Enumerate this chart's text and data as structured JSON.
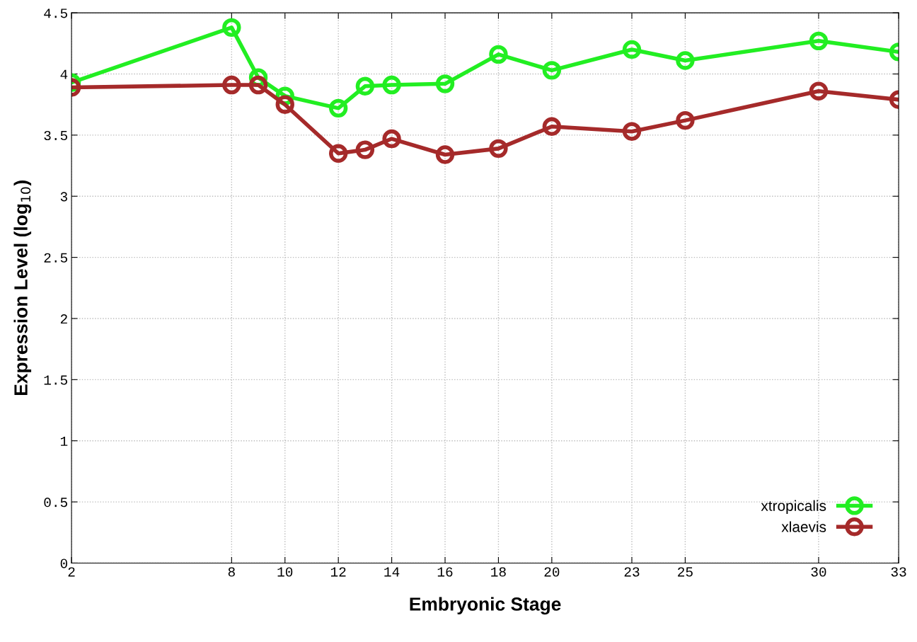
{
  "chart_data": {
    "type": "line",
    "xlabel": "Embryonic Stage",
    "ylabel": "Expression Level (log$_{10}$)",
    "xlim": [
      2,
      33
    ],
    "xticks": [
      2,
      8,
      10,
      12,
      14,
      16,
      18,
      20,
      23,
      25,
      30,
      33
    ],
    "ylim": [
      0,
      4.5
    ],
    "yticks": [
      0,
      0.5,
      1,
      1.5,
      2,
      2.5,
      3,
      3.5,
      4,
      4.5
    ],
    "x": [
      2,
      8,
      9,
      10,
      12,
      13,
      14,
      16,
      18,
      20,
      23,
      25,
      30,
      33
    ],
    "series": [
      {
        "name": "xtropicalis",
        "color": "#22ee22",
        "values": [
          3.93,
          4.38,
          3.97,
          3.82,
          3.72,
          3.9,
          3.91,
          3.92,
          4.16,
          4.03,
          4.2,
          4.11,
          4.27,
          4.18
        ]
      },
      {
        "name": "xlaevis",
        "color": "#a52a2a",
        "values": [
          3.89,
          3.91,
          3.91,
          3.75,
          3.35,
          3.38,
          3.47,
          3.34,
          3.39,
          3.57,
          3.53,
          3.62,
          3.86,
          3.79
        ]
      }
    ],
    "grid": true,
    "legend": "bottom right",
    "marker": "circle",
    "line_style": "solid"
  }
}
